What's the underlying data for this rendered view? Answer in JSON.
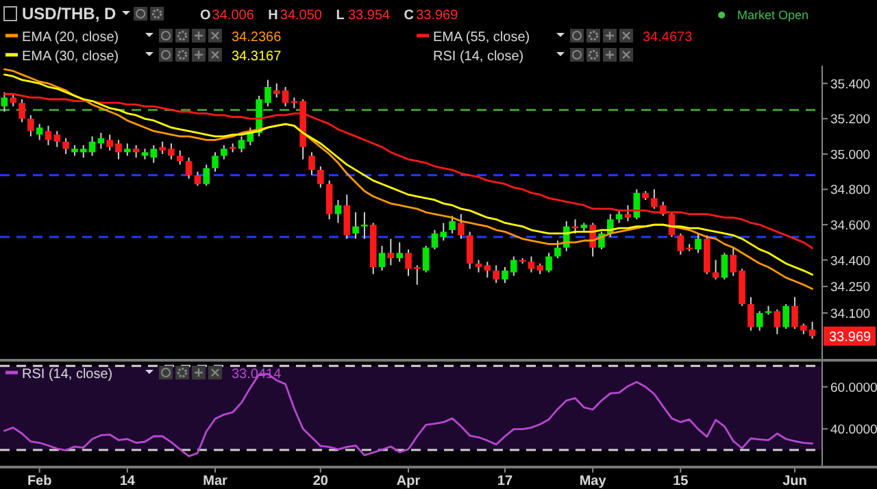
{
  "chart_data": [
    {
      "type": "candlestick",
      "title": "USD/THB, D",
      "legend": "top left",
      "tick_labels": "y",
      "categories": [
        null,
        null,
        null,
        null,
        null,
        null,
        null,
        null,
        null,
        null,
        null,
        null,
        null,
        null,
        null,
        null,
        null,
        null,
        null,
        null,
        null,
        null,
        null,
        null,
        null,
        null,
        null,
        null,
        null,
        null,
        null,
        null,
        null,
        null,
        null,
        null,
        null,
        null,
        null,
        null,
        null,
        null,
        null,
        null,
        null,
        null,
        null,
        null,
        null,
        null,
        null,
        null,
        null,
        null,
        null,
        null,
        null,
        null,
        null,
        null,
        null,
        null,
        null,
        null,
        null,
        null,
        null,
        null,
        null,
        null,
        null,
        null,
        null,
        null,
        null,
        null,
        null,
        null,
        null,
        null,
        null,
        null,
        null,
        null,
        null,
        null,
        null,
        null,
        null,
        null,
        null,
        null,
        null
      ],
      "ohlc": [
        [
          35.27,
          35.35,
          35.24,
          35.32
        ],
        [
          35.32,
          35.34,
          35.27,
          35.29
        ],
        [
          35.29,
          35.31,
          35.18,
          35.2
        ],
        [
          35.2,
          35.22,
          35.1,
          35.13
        ],
        [
          35.11,
          35.17,
          35.08,
          35.15
        ],
        [
          35.13,
          35.16,
          35.05,
          35.08
        ],
        [
          35.11,
          35.13,
          35.04,
          35.07
        ],
        [
          35.07,
          35.09,
          35.0,
          35.03
        ],
        [
          35.01,
          35.05,
          34.99,
          35.03
        ],
        [
          35.01,
          35.05,
          34.98,
          35.03
        ],
        [
          35.01,
          35.1,
          34.99,
          35.07
        ],
        [
          35.06,
          35.12,
          35.03,
          35.09
        ],
        [
          35.08,
          35.11,
          35.02,
          35.04
        ],
        [
          35.06,
          35.08,
          34.97,
          35.01
        ],
        [
          35.01,
          35.06,
          34.99,
          35.03
        ],
        [
          35.03,
          35.05,
          34.98,
          35.01
        ],
        [
          34.99,
          35.03,
          34.97,
          35.01
        ],
        [
          34.98,
          35.05,
          34.95,
          35.03
        ],
        [
          35.04,
          35.07,
          35.0,
          35.02
        ],
        [
          35.03,
          35.06,
          34.97,
          34.99
        ],
        [
          34.99,
          35.02,
          34.94,
          34.96
        ],
        [
          34.96,
          34.98,
          34.86,
          34.88
        ],
        [
          34.88,
          34.9,
          34.82,
          34.83
        ],
        [
          34.83,
          34.94,
          34.82,
          34.92
        ],
        [
          34.92,
          35.01,
          34.9,
          34.99
        ],
        [
          34.99,
          35.05,
          34.97,
          35.03
        ],
        [
          35.04,
          35.06,
          35.01,
          35.03
        ],
        [
          35.03,
          35.1,
          35.01,
          35.08
        ],
        [
          35.07,
          35.15,
          35.05,
          35.13
        ],
        [
          35.12,
          35.33,
          35.1,
          35.31
        ],
        [
          35.29,
          35.42,
          35.27,
          35.38
        ],
        [
          35.36,
          35.4,
          35.32,
          35.34
        ],
        [
          35.36,
          35.38,
          35.27,
          35.29
        ],
        [
          35.3,
          35.32,
          35.26,
          35.29
        ],
        [
          35.3,
          35.31,
          34.97,
          35.04
        ],
        [
          34.99,
          35.01,
          34.88,
          34.91
        ],
        [
          34.91,
          34.93,
          34.81,
          34.83
        ],
        [
          34.83,
          34.85,
          34.63,
          34.66
        ],
        [
          34.66,
          34.74,
          34.61,
          34.71
        ],
        [
          34.71,
          34.77,
          34.52,
          34.54
        ],
        [
          34.55,
          34.67,
          34.52,
          34.59
        ],
        [
          34.59,
          34.67,
          34.52,
          34.6
        ],
        [
          34.6,
          34.61,
          34.32,
          34.36
        ],
        [
          34.36,
          34.48,
          34.34,
          34.44
        ],
        [
          34.44,
          34.52,
          34.37,
          34.41
        ],
        [
          34.41,
          34.5,
          34.39,
          34.44
        ],
        [
          34.44,
          34.46,
          34.31,
          34.35
        ],
        [
          34.36,
          34.37,
          34.26,
          34.35
        ],
        [
          34.34,
          34.48,
          34.33,
          34.47
        ],
        [
          34.47,
          34.57,
          34.46,
          34.55
        ],
        [
          34.53,
          34.61,
          34.51,
          34.56
        ],
        [
          34.57,
          34.65,
          34.55,
          34.62
        ],
        [
          34.61,
          34.66,
          34.52,
          34.54
        ],
        [
          34.54,
          34.56,
          34.35,
          34.38
        ],
        [
          34.38,
          34.4,
          34.33,
          34.36
        ],
        [
          34.37,
          34.39,
          34.3,
          34.34
        ],
        [
          34.34,
          34.37,
          34.27,
          34.29
        ],
        [
          34.29,
          34.36,
          34.27,
          34.34
        ],
        [
          34.33,
          34.42,
          34.31,
          34.4
        ],
        [
          34.4,
          34.41,
          34.38,
          34.39
        ],
        [
          34.39,
          34.42,
          34.33,
          34.35
        ],
        [
          34.37,
          34.38,
          34.32,
          34.34
        ],
        [
          34.34,
          34.44,
          34.33,
          34.42
        ],
        [
          34.42,
          34.51,
          34.41,
          34.47
        ],
        [
          34.47,
          34.62,
          34.45,
          34.59
        ],
        [
          34.59,
          34.63,
          34.55,
          34.58
        ],
        [
          34.58,
          34.61,
          34.56,
          34.6
        ],
        [
          34.6,
          34.61,
          34.42,
          34.47
        ],
        [
          34.47,
          34.56,
          34.46,
          34.55
        ],
        [
          34.55,
          34.66,
          34.53,
          34.63
        ],
        [
          34.63,
          34.68,
          34.61,
          34.66
        ],
        [
          34.66,
          34.71,
          34.62,
          34.64
        ],
        [
          34.64,
          34.8,
          34.63,
          34.78
        ],
        [
          34.78,
          34.79,
          34.74,
          34.75
        ],
        [
          34.75,
          34.8,
          34.69,
          34.7
        ],
        [
          34.71,
          34.73,
          34.65,
          34.66
        ],
        [
          34.66,
          34.67,
          34.53,
          34.54
        ],
        [
          34.54,
          34.55,
          34.43,
          34.45
        ],
        [
          34.47,
          34.49,
          34.45,
          34.46
        ],
        [
          34.46,
          34.55,
          34.44,
          34.52
        ],
        [
          34.52,
          34.54,
          34.32,
          34.33
        ],
        [
          34.33,
          34.4,
          34.29,
          34.3
        ],
        [
          34.3,
          34.44,
          34.29,
          34.43
        ],
        [
          34.43,
          34.47,
          34.31,
          34.33
        ],
        [
          34.34,
          34.35,
          34.14,
          34.15
        ],
        [
          34.15,
          34.19,
          34.0,
          34.02
        ],
        [
          34.02,
          34.11,
          34.0,
          34.1
        ],
        [
          34.1,
          34.14,
          34.09,
          34.11
        ],
        [
          34.11,
          34.12,
          33.98,
          34.02
        ],
        [
          34.02,
          34.15,
          34.01,
          34.14
        ],
        [
          34.14,
          34.19,
          34.01,
          34.02
        ],
        [
          34.03,
          34.04,
          33.98,
          34.0
        ],
        [
          34.006,
          34.05,
          33.954,
          33.969
        ]
      ],
      "series": [
        {
          "name": "EMA (20, close)",
          "type": "line",
          "color": "#ff9800",
          "values": [
            35.48,
            35.47,
            35.45,
            35.43,
            35.41,
            35.4,
            35.38,
            35.36,
            35.33,
            35.31,
            35.28,
            35.26,
            35.24,
            35.22,
            35.19,
            35.17,
            35.15,
            35.13,
            35.12,
            35.11,
            35.1,
            35.1,
            35.09,
            35.08,
            35.08,
            35.09,
            35.1,
            35.12,
            35.13,
            35.14,
            35.15,
            35.16,
            35.17,
            35.16,
            35.12,
            35.08,
            35.04,
            35.0,
            34.95,
            34.89,
            34.84,
            34.79,
            34.76,
            34.74,
            34.72,
            34.71,
            34.7,
            34.69,
            34.67,
            34.66,
            34.65,
            34.64,
            34.62,
            34.61,
            34.6,
            34.59,
            34.57,
            34.56,
            34.54,
            34.52,
            34.51,
            34.5,
            34.49,
            34.49,
            34.5,
            34.5,
            34.51,
            34.51,
            34.53,
            34.55,
            34.56,
            34.57,
            34.58,
            34.59,
            34.6,
            34.6,
            34.59,
            34.58,
            34.57,
            34.55,
            34.53,
            34.52,
            34.49,
            34.47,
            34.44,
            34.41,
            34.38,
            34.36,
            34.33,
            34.3,
            34.28,
            34.26,
            34.2366
          ]
        },
        {
          "name": "EMA (55, close)",
          "type": "line",
          "color": "#ff1a1a",
          "values": [
            35.34,
            35.34,
            35.33,
            35.32,
            35.32,
            35.31,
            35.31,
            35.31,
            35.3,
            35.3,
            35.3,
            35.29,
            35.29,
            35.29,
            35.28,
            35.28,
            35.27,
            35.27,
            35.26,
            35.25,
            35.24,
            35.24,
            35.23,
            35.23,
            35.22,
            35.22,
            35.21,
            35.21,
            35.2,
            35.2,
            35.21,
            35.22,
            35.22,
            35.23,
            35.23,
            35.21,
            35.19,
            35.17,
            35.14,
            35.12,
            35.1,
            35.08,
            35.06,
            35.04,
            35.01,
            34.99,
            34.97,
            34.96,
            34.95,
            34.93,
            34.92,
            34.91,
            34.89,
            34.88,
            34.87,
            34.85,
            34.84,
            34.83,
            34.81,
            34.8,
            34.78,
            34.77,
            34.75,
            34.74,
            34.73,
            34.72,
            34.71,
            34.69,
            34.69,
            34.69,
            34.68,
            34.68,
            34.68,
            34.68,
            34.67,
            34.67,
            34.67,
            34.67,
            34.66,
            34.66,
            34.66,
            34.65,
            34.64,
            34.64,
            34.63,
            34.61,
            34.6,
            34.58,
            34.56,
            34.54,
            34.52,
            34.5,
            34.4673
          ]
        },
        {
          "name": "EMA (30, close)",
          "type": "line",
          "color": "#ffff00",
          "values": [
            35.45,
            35.44,
            35.42,
            35.41,
            35.4,
            35.38,
            35.37,
            35.35,
            35.33,
            35.31,
            35.3,
            35.28,
            35.26,
            35.25,
            35.23,
            35.22,
            35.2,
            35.19,
            35.17,
            35.15,
            35.14,
            35.13,
            35.12,
            35.11,
            35.1,
            35.1,
            35.11,
            35.11,
            35.12,
            35.13,
            35.15,
            35.16,
            35.17,
            35.16,
            35.12,
            35.09,
            35.06,
            35.02,
            34.98,
            34.94,
            34.91,
            34.88,
            34.85,
            34.83,
            34.81,
            34.79,
            34.77,
            34.76,
            34.75,
            34.74,
            34.72,
            34.71,
            34.69,
            34.68,
            34.66,
            34.64,
            34.63,
            34.61,
            34.6,
            34.59,
            34.57,
            34.56,
            34.55,
            34.55,
            34.55,
            34.56,
            34.56,
            34.56,
            34.57,
            34.57,
            34.58,
            34.58,
            34.59,
            34.59,
            34.6,
            34.6,
            34.59,
            34.59,
            34.58,
            34.58,
            34.57,
            34.56,
            34.55,
            34.54,
            34.52,
            34.49,
            34.46,
            34.44,
            34.41,
            34.38,
            34.36,
            34.34,
            34.3167
          ]
        }
      ],
      "ylim": [
        33.84,
        35.5
      ],
      "yticks": [
        {
          "value": 35.4,
          "label": "35.400"
        },
        {
          "value": 35.2,
          "label": "35.200"
        },
        {
          "value": 35.0,
          "label": "35.000"
        },
        {
          "value": 34.8,
          "label": "34.800"
        },
        {
          "value": 34.6,
          "label": "34.600"
        },
        {
          "value": 34.4,
          "label": "34.400"
        },
        {
          "value": 34.25,
          "label": "34.250"
        },
        {
          "value": 34.1,
          "label": "34.100"
        }
      ],
      "ref_lines": [
        {
          "axis": "y",
          "value": 35.25,
          "color": "#3c9a2c",
          "line_style": "dashed"
        },
        {
          "axis": "y",
          "value": 34.88,
          "color": "#1f3cff",
          "line_style": "dashed"
        },
        {
          "axis": "y",
          "value": 34.53,
          "color": "#1f3cff",
          "line_style": "dashed"
        }
      ],
      "annotations": [
        "O",
        "34.006",
        "H",
        "34.050",
        "L",
        "33.954",
        "C",
        "33.969",
        "34.2366",
        "34.4673",
        "34.3167",
        "RSI (14, close)",
        "Market Open",
        {
          "text": "33.969",
          "y": 33.969
        }
      ]
    },
    {
      "type": "line",
      "legend": "top left",
      "categories": [
        null,
        null,
        null,
        null,
        "Feb",
        null,
        null,
        null,
        null,
        null,
        null,
        null,
        null,
        null,
        "14",
        null,
        null,
        null,
        null,
        null,
        null,
        null,
        null,
        null,
        "Mar",
        null,
        null,
        null,
        null,
        null,
        null,
        null,
        null,
        null,
        null,
        null,
        "20",
        null,
        null,
        null,
        null,
        null,
        null,
        null,
        null,
        null,
        "Apr",
        null,
        null,
        null,
        null,
        null,
        null,
        null,
        null,
        null,
        null,
        "17",
        null,
        null,
        null,
        null,
        null,
        null,
        null,
        null,
        null,
        "May",
        null,
        null,
        null,
        null,
        null,
        null,
        null,
        null,
        null,
        "15",
        null,
        null,
        null,
        null,
        null,
        null,
        null,
        null,
        null,
        null,
        null,
        null,
        "Jun",
        null,
        null
      ],
      "series": [
        {
          "name": "RSI (14, close)",
          "color": "#b848d0",
          "values": [
            39.1,
            40.6,
            37.8,
            34.0,
            33.4,
            32.1,
            30.6,
            29.8,
            31.6,
            31.1,
            35.2,
            37.0,
            37.3,
            34.7,
            35.2,
            33.4,
            33.9,
            36.5,
            36.5,
            33.7,
            30.3,
            27.0,
            28.5,
            38.8,
            44.8,
            46.8,
            47.9,
            52.5,
            59.5,
            65.9,
            66.2,
            63.1,
            61.3,
            49.7,
            40.1,
            36.0,
            31.9,
            31.4,
            30.3,
            31.4,
            32.1,
            27.5,
            28.8,
            30.1,
            31.6,
            29.0,
            30.3,
            36.5,
            41.9,
            42.5,
            43.2,
            45.0,
            41.2,
            36.8,
            36.0,
            34.5,
            32.6,
            36.5,
            39.9,
            39.9,
            40.6,
            42.2,
            44.5,
            49.4,
            53.5,
            54.6,
            50.2,
            49.2,
            53.5,
            56.9,
            57.2,
            60.3,
            62.3,
            60.0,
            56.6,
            50.7,
            45.0,
            43.2,
            44.5,
            39.9,
            36.3,
            44.3,
            41.2,
            34.2,
            30.8,
            35.5,
            35.0,
            34.7,
            37.8,
            35.2,
            34.2,
            33.4,
            33.0414
          ]
        }
      ],
      "ylim": [
        22.5,
        72
      ],
      "yticks": [
        {
          "value": 60,
          "label": "60.0000"
        },
        {
          "value": 40,
          "label": "40.0000"
        }
      ],
      "ref_lines": [
        {
          "axis": "y",
          "value": 70,
          "color": "#d0d0d0",
          "line_style": "dashed"
        },
        {
          "axis": "y",
          "value": 30,
          "color": "#d0d0d0",
          "line_style": "dashed"
        }
      ],
      "bands": [
        {
          "axis": "y",
          "from": 30,
          "to": 70,
          "color": "#1e0830"
        }
      ],
      "annotations": [
        "33.0414"
      ]
    }
  ]
}
